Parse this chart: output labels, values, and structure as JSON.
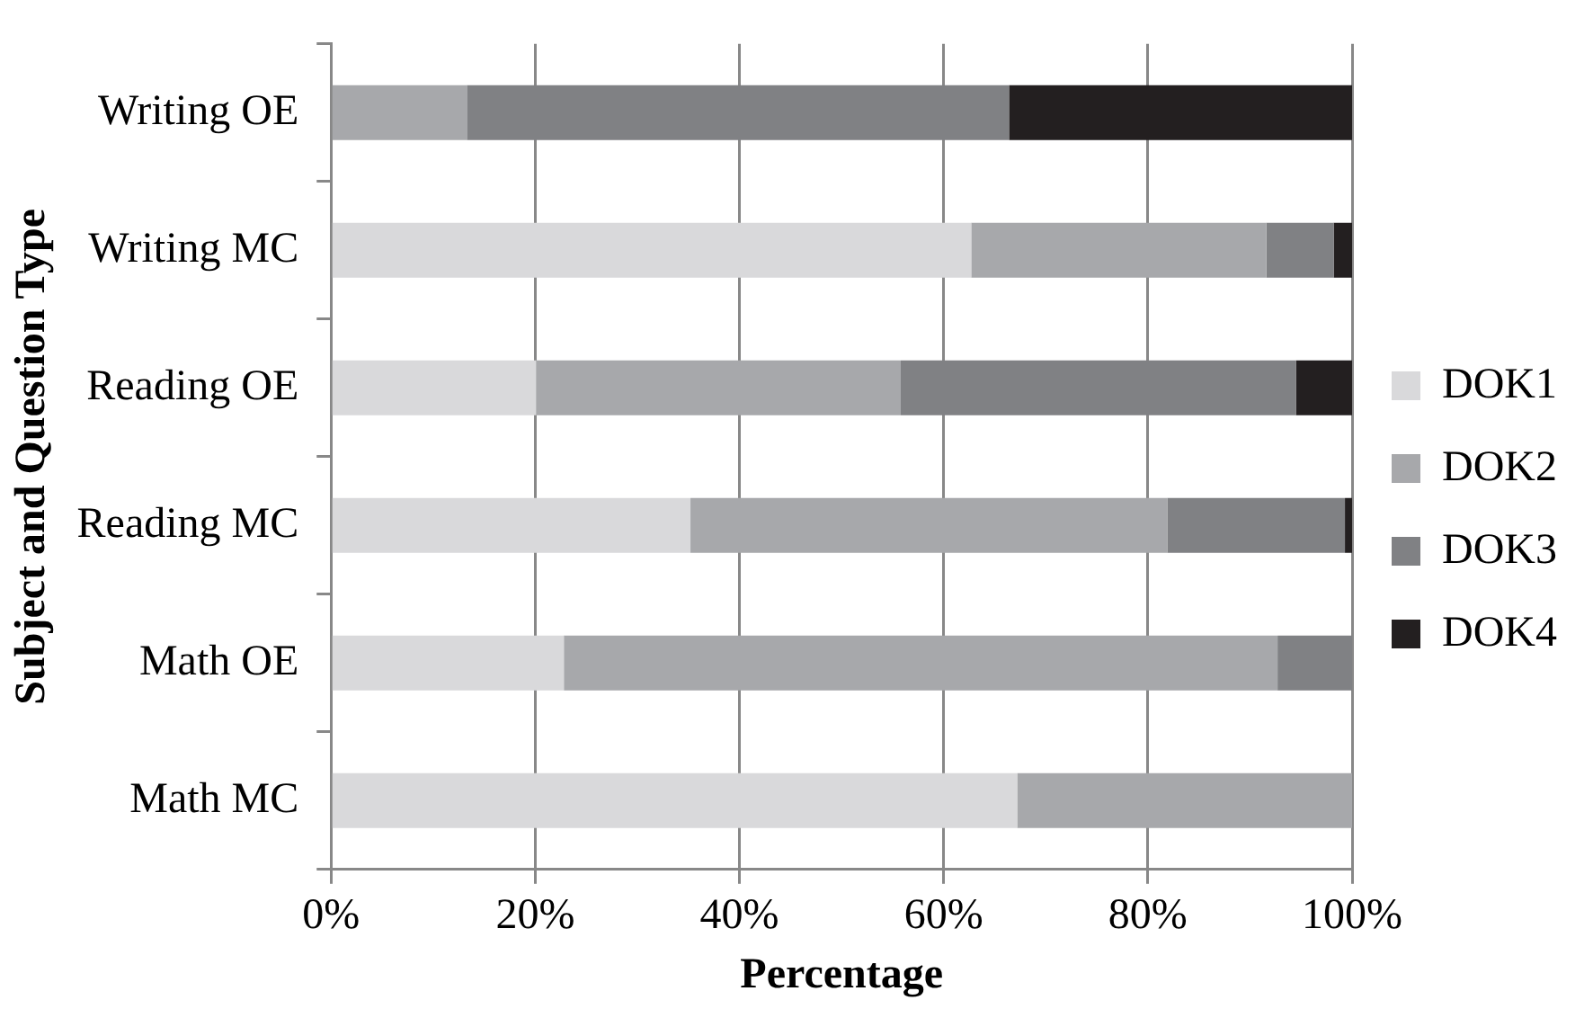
{
  "chart_data": {
    "type": "bar",
    "orientation": "horizontal",
    "stacked": true,
    "xlabel": "Percentage",
    "ylabel": "Subject and Question Type",
    "categories": [
      "Writing OE",
      "Writing MC",
      "Reading OE",
      "Reading MC",
      "Math OE",
      "Math MC"
    ],
    "series": [
      {
        "name": "DOK1",
        "color": "#d9d9db",
        "values": [
          0,
          62.7,
          20.1,
          35.2,
          22.8,
          67.2
        ]
      },
      {
        "name": "DOK2",
        "color": "#a7a8ab",
        "values": [
          13.3,
          28.9,
          35.7,
          46.7,
          69.9,
          32.8
        ]
      },
      {
        "name": "DOK3",
        "color": "#808184",
        "values": [
          53.1,
          6.6,
          38.7,
          17.4,
          7.3,
          0
        ]
      },
      {
        "name": "DOK4",
        "color": "#231f20",
        "values": [
          33.6,
          1.8,
          5.5,
          0.7,
          0,
          0
        ]
      }
    ],
    "xlim": [
      0,
      100
    ],
    "xticks": [
      {
        "value": 0,
        "label": "0%"
      },
      {
        "value": 20,
        "label": "20%"
      },
      {
        "value": 40,
        "label": "40%"
      },
      {
        "value": 60,
        "label": "60%"
      },
      {
        "value": 80,
        "label": "80%"
      },
      {
        "value": 100,
        "label": "100%"
      }
    ],
    "grid": "x",
    "legend": "right"
  }
}
